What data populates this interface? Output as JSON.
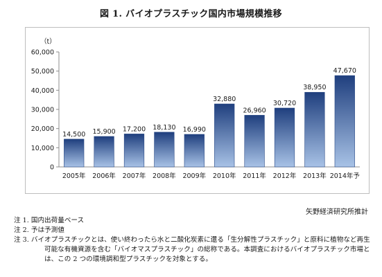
{
  "chart_data": {
    "type": "bar",
    "title": "図 1. バイオプラスチック国内市場規模推移",
    "unit_label": "（t）",
    "categories": [
      "2005年",
      "2006年",
      "2007年",
      "2008年",
      "2009年",
      "2010年",
      "2011年",
      "2012年",
      "2013年",
      "2014年予"
    ],
    "values": [
      14500,
      15900,
      17200,
      18130,
      16990,
      32880,
      26960,
      30720,
      38950,
      47670
    ],
    "value_labels": [
      "14,500",
      "15,900",
      "17,200",
      "18,130",
      "16,990",
      "32,880",
      "26,960",
      "30,720",
      "38,950",
      "47,670"
    ],
    "ylim": [
      0,
      60000
    ],
    "yticks": [
      0,
      10000,
      20000,
      30000,
      40000,
      50000,
      60000
    ],
    "ytick_labels": [
      "0",
      "10,000",
      "20,000",
      "30,000",
      "40,000",
      "50,000",
      "60,000"
    ],
    "grid": false,
    "legend": "none",
    "colors": {
      "bar_top": "#1f3f7e",
      "bar_bottom": "#a8c2e6",
      "bar_edge": "#2a4a86"
    }
  },
  "source": "矢野経済研究所推計",
  "notes": [
    "注 1. 国内出荷量ベース",
    "注 2. 予は予測値",
    "注 3. バイオプラスチックとは、使い終わったら水と二酸化炭素に還る「生分解性プラスチック」と原料に植物など再生可能な有機資源を含む「バイオマスプラスチック」の総称である。本調査におけるバイオプラスチック市場とは、この 2 つの環境調和型プラスチックを対象とする。"
  ]
}
